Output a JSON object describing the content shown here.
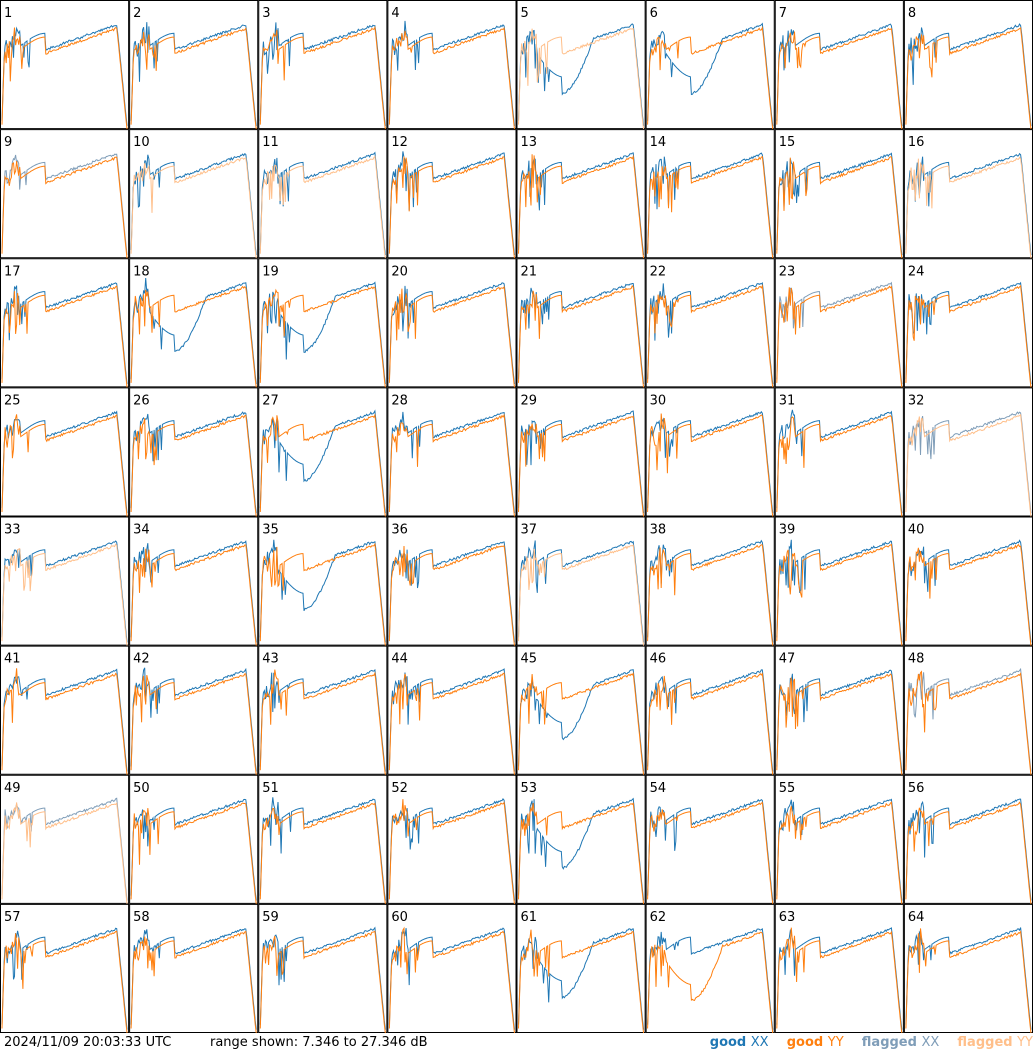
{
  "chart_data": {
    "type": "line",
    "layout": "8x8 small-multiples grid of per-antenna bandpass spectra",
    "x_axis": "frequency channel (no ticks shown)",
    "y_axis": "power (dB)",
    "ylim": [
      7.346,
      27.346
    ],
    "series_styles": [
      {
        "name": "good XX",
        "color": "#1f77b4"
      },
      {
        "name": "good YY",
        "color": "#ff7f0e"
      },
      {
        "name": "flagged XX",
        "color": "#7f9db8"
      },
      {
        "name": "flagged YY",
        "color": "#ffbf8a"
      }
    ],
    "panels": [
      {
        "id": "1",
        "xx": "good",
        "yy": "good"
      },
      {
        "id": "2",
        "xx": "good",
        "yy": "good"
      },
      {
        "id": "3",
        "xx": "good",
        "yy": "good"
      },
      {
        "id": "4",
        "xx": "good",
        "yy": "good"
      },
      {
        "id": "5",
        "xx": "good",
        "yy": "flagged"
      },
      {
        "id": "6",
        "xx": "good",
        "yy": "good"
      },
      {
        "id": "7",
        "xx": "good",
        "yy": "good"
      },
      {
        "id": "8",
        "xx": "good",
        "yy": "good"
      },
      {
        "id": "9",
        "xx": "flagged",
        "yy": "good"
      },
      {
        "id": "10",
        "xx": "good",
        "yy": "flagged"
      },
      {
        "id": "11",
        "xx": "good",
        "yy": "flagged"
      },
      {
        "id": "12",
        "xx": "good",
        "yy": "good"
      },
      {
        "id": "13",
        "xx": "good",
        "yy": "good"
      },
      {
        "id": "14",
        "xx": "good",
        "yy": "good"
      },
      {
        "id": "15",
        "xx": "good",
        "yy": "good"
      },
      {
        "id": "16",
        "xx": "good",
        "yy": "flagged"
      },
      {
        "id": "17",
        "xx": "good",
        "yy": "good"
      },
      {
        "id": "18",
        "xx": "good",
        "yy": "good"
      },
      {
        "id": "19",
        "xx": "good",
        "yy": "good"
      },
      {
        "id": "20",
        "xx": "good",
        "yy": "good"
      },
      {
        "id": "21",
        "xx": "good",
        "yy": "good"
      },
      {
        "id": "22",
        "xx": "good",
        "yy": "good"
      },
      {
        "id": "23",
        "xx": "flagged",
        "yy": "good"
      },
      {
        "id": "24",
        "xx": "good",
        "yy": "good"
      },
      {
        "id": "25",
        "xx": "good",
        "yy": "good"
      },
      {
        "id": "26",
        "xx": "good",
        "yy": "good"
      },
      {
        "id": "27",
        "xx": "good",
        "yy": "good"
      },
      {
        "id": "28",
        "xx": "good",
        "yy": "good"
      },
      {
        "id": "29",
        "xx": "good",
        "yy": "good"
      },
      {
        "id": "30",
        "xx": "good",
        "yy": "good"
      },
      {
        "id": "31",
        "xx": "good",
        "yy": "good"
      },
      {
        "id": "32",
        "xx": "flagged",
        "yy": "flagged"
      },
      {
        "id": "33",
        "xx": "good",
        "yy": "flagged"
      },
      {
        "id": "34",
        "xx": "good",
        "yy": "good"
      },
      {
        "id": "35",
        "xx": "good",
        "yy": "good"
      },
      {
        "id": "36",
        "xx": "good",
        "yy": "good"
      },
      {
        "id": "37",
        "xx": "good",
        "yy": "flagged"
      },
      {
        "id": "38",
        "xx": "good",
        "yy": "good"
      },
      {
        "id": "39",
        "xx": "good",
        "yy": "good"
      },
      {
        "id": "40",
        "xx": "good",
        "yy": "good"
      },
      {
        "id": "41",
        "xx": "good",
        "yy": "good"
      },
      {
        "id": "42",
        "xx": "good",
        "yy": "good"
      },
      {
        "id": "43",
        "xx": "good",
        "yy": "good"
      },
      {
        "id": "44",
        "xx": "good",
        "yy": "good"
      },
      {
        "id": "45",
        "xx": "good",
        "yy": "good"
      },
      {
        "id": "46",
        "xx": "good",
        "yy": "good"
      },
      {
        "id": "47",
        "xx": "good",
        "yy": "good"
      },
      {
        "id": "48",
        "xx": "flagged",
        "yy": "good"
      },
      {
        "id": "49",
        "xx": "flagged",
        "yy": "flagged"
      },
      {
        "id": "50",
        "xx": "good",
        "yy": "good"
      },
      {
        "id": "51",
        "xx": "good",
        "yy": "good"
      },
      {
        "id": "52",
        "xx": "good",
        "yy": "good"
      },
      {
        "id": "53",
        "xx": "good",
        "yy": "good"
      },
      {
        "id": "54",
        "xx": "good",
        "yy": "good"
      },
      {
        "id": "55",
        "xx": "good",
        "yy": "good"
      },
      {
        "id": "56",
        "xx": "good",
        "yy": "good"
      },
      {
        "id": "57",
        "xx": "good",
        "yy": "good"
      },
      {
        "id": "58",
        "xx": "good",
        "yy": "good"
      },
      {
        "id": "59",
        "xx": "good",
        "yy": "good"
      },
      {
        "id": "60",
        "xx": "good",
        "yy": "good"
      },
      {
        "id": "61",
        "xx": "good",
        "yy": "good"
      },
      {
        "id": "62",
        "xx": "good",
        "yy": "good"
      },
      {
        "id": "63",
        "xx": "good",
        "yy": "good"
      },
      {
        "id": "64",
        "xx": "good",
        "yy": "good"
      }
    ]
  },
  "footer": {
    "timestamp": "2024/11/09 20:03:33 UTC",
    "range_text": "range shown: 7.346 to 27.346 dB"
  },
  "legend": [
    {
      "label": "good",
      "pol": "XX",
      "color": "#1f77b4"
    },
    {
      "label": "good",
      "pol": "YY",
      "color": "#ff7f0e"
    },
    {
      "label": "flagged",
      "pol": "XX",
      "color": "#7f9db8"
    },
    {
      "label": "flagged",
      "pol": "YY",
      "color": "#ffbf8a"
    }
  ]
}
